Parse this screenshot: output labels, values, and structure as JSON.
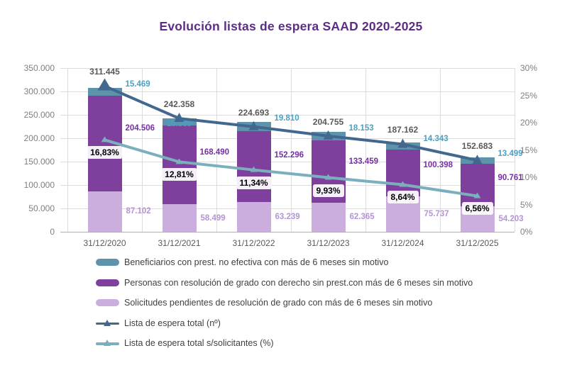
{
  "title": "Evolución listas de espera SAAD 2020-2025",
  "chart_data": {
    "type": "bar",
    "subtype": "stacked-bar-with-lines-combo",
    "title": "Evolución listas de espera SAAD 2020-2025",
    "categories": [
      "31/12/2020",
      "31/12/2021",
      "31/12/2022",
      "31/12/2023",
      "31/12/2024",
      "31/12/2025"
    ],
    "left_axis": {
      "ticks": [
        "350.000",
        "300.000",
        "250.000",
        "200.000",
        "150.000",
        "100.000",
        "50.000",
        "0"
      ],
      "max": 350000,
      "min": 0
    },
    "right_axis": {
      "ticks": [
        "30%",
        "25%",
        "20%",
        "15%",
        "10%",
        "5%",
        "0%"
      ],
      "max": 30,
      "min": 0
    },
    "bar_series": [
      {
        "name": "Beneficiarios con prest. no efectiva con más de 6 meses sin motivo",
        "color": "#5e93ac",
        "label_color": "#4d9fc2",
        "values": [
          15469,
          15369,
          19810,
          18153,
          14343,
          13499
        ],
        "labels": [
          "15.469",
          "15.369",
          "19.810",
          "18.153",
          "14.343",
          "13.499"
        ]
      },
      {
        "name": "Personas con resolución de grado con derecho sin prest.con más de 6 meses sin motivo",
        "color": "#7e3f9d",
        "label_color": "#7430a3",
        "values": [
          204506,
          168490,
          152296,
          133459,
          100398,
          90761
        ],
        "labels": [
          "204.506",
          "168.490",
          "152.296",
          "133.459",
          "100.398",
          "90.761"
        ]
      },
      {
        "name": "Solicitudes pendientes de resolución de grado con más de 6 meses sin motivo",
        "color": "#cbaedd",
        "label_color": "#b493d6",
        "values": [
          87102,
          58499,
          63239,
          62365,
          75737,
          54203
        ],
        "labels": [
          "87.102",
          "58.499",
          "63.239",
          "62.365",
          "75.737",
          "54.203"
        ]
      }
    ],
    "line_series": [
      {
        "name": "Lista de espera total (nº)",
        "color": "#426890",
        "axis": "left",
        "marker": "triangle",
        "values": [
          311445,
          242358,
          224693,
          204755,
          187162,
          152683
        ],
        "labels": [
          "311.445",
          "242.358",
          "224.693",
          "204.755",
          "187.162",
          "152.683"
        ],
        "label_color": "#595959"
      },
      {
        "name": "Lista de espera total s/solicitantes (%)",
        "color": "#7cafbd",
        "axis": "right",
        "marker": "triangle",
        "values": [
          16.83,
          12.81,
          11.34,
          9.93,
          8.64,
          6.56
        ],
        "labels": [
          "16,83%",
          "12,81%",
          "11,34%",
          "9,93%",
          "8,64%",
          "6,56%"
        ],
        "label_color": "#000000"
      }
    ],
    "legend_position": "bottom-left",
    "grid": true
  }
}
